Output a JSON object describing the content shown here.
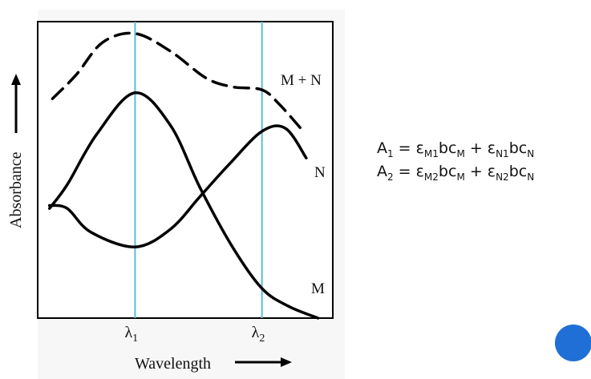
{
  "chart_data": {
    "type": "line",
    "xlabel": "Wavelength",
    "ylabel": "Absorbance",
    "x_ticks": [
      "λ1",
      "λ2"
    ],
    "series": [
      {
        "name": "M + N",
        "style": "dashed",
        "points": [
          [
            0.05,
            0.74
          ],
          [
            0.13,
            0.82
          ],
          [
            0.22,
            0.93
          ],
          [
            0.33,
            0.96
          ],
          [
            0.45,
            0.9
          ],
          [
            0.57,
            0.81
          ],
          [
            0.66,
            0.78
          ],
          [
            0.76,
            0.77
          ],
          [
            0.82,
            0.72
          ],
          [
            0.9,
            0.63
          ]
        ]
      },
      {
        "name": "N",
        "style": "solid",
        "points": [
          [
            0.04,
            0.38
          ],
          [
            0.1,
            0.37
          ],
          [
            0.18,
            0.29
          ],
          [
            0.33,
            0.24
          ],
          [
            0.45,
            0.3
          ],
          [
            0.55,
            0.41
          ],
          [
            0.65,
            0.52
          ],
          [
            0.76,
            0.63
          ],
          [
            0.84,
            0.64
          ],
          [
            0.91,
            0.54
          ]
        ]
      },
      {
        "name": "M",
        "style": "solid",
        "points": [
          [
            0.04,
            0.37
          ],
          [
            0.1,
            0.45
          ],
          [
            0.2,
            0.62
          ],
          [
            0.33,
            0.76
          ],
          [
            0.45,
            0.65
          ],
          [
            0.55,
            0.44
          ],
          [
            0.66,
            0.24
          ],
          [
            0.76,
            0.1
          ],
          [
            0.85,
            0.04
          ],
          [
            0.95,
            0.0
          ]
        ]
      }
    ],
    "vlines": [
      0.33,
      0.76
    ],
    "vline_color": "#5bbcd6",
    "line_color": "#000000"
  },
  "equations": {
    "line1": {
      "lhs": "A",
      "lhs_sub": "1",
      "rhs": [
        [
          "ε",
          "M1"
        ],
        [
          "bc",
          "M"
        ],
        [
          " + ε",
          "N1"
        ],
        [
          "bc",
          "N"
        ]
      ]
    },
    "line2": {
      "lhs": "A",
      "lhs_sub": "2",
      "rhs": [
        [
          "ε",
          "M2"
        ],
        [
          "bc",
          "M"
        ],
        [
          " + ε",
          "N2"
        ],
        [
          "bc",
          "N"
        ]
      ]
    }
  },
  "colors": {
    "nav_dot": "#1f6fd6"
  }
}
